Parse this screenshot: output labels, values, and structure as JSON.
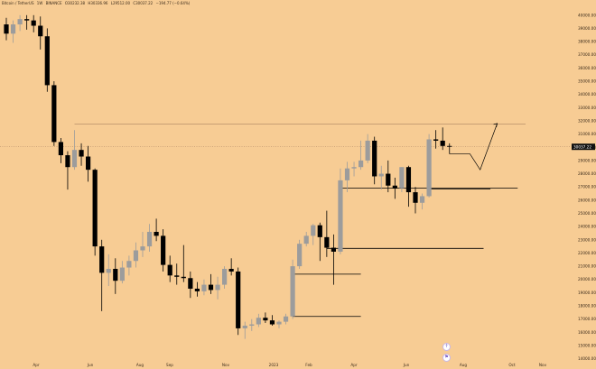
{
  "header": {
    "symbol": "Bitcoin / TetherUS",
    "interval": "1W",
    "exchange": "BINANCE",
    "open": "O30232.38",
    "high": "H30336.96",
    "low": "L29512.00",
    "close": "C30037.22",
    "change": "−194.77 (−0.64%)"
  },
  "price_label": "30037.22",
  "colors": {
    "background": "#f7cc94",
    "up_candle": "#9c9c9c",
    "down_candle": "#000000",
    "price_line": "#b8906a",
    "level_lines": "#000000",
    "projection": "#000000"
  },
  "icons": [
    "clock-icon",
    "arrow-icon",
    "flag-icon"
  ],
  "chart_data": {
    "type": "candlestick",
    "y_tick_labels": [
      "14000.00",
      "15000.00",
      "16000.00",
      "17000.00",
      "18000.00",
      "19000.00",
      "20000.00",
      "21000.00",
      "22000.00",
      "23000.00",
      "24000.00",
      "25000.00",
      "26000.00",
      "27000.00",
      "28000.00",
      "29000.00",
      "30000.00",
      "31000.00",
      "32000.00",
      "33000.00",
      "34000.00",
      "35000.00",
      "36000.00",
      "37000.00",
      "38000.00",
      "39000.00",
      "40000.00"
    ],
    "x_tick_labels": [
      "Apr",
      "Jun",
      "Aug",
      "Sep",
      "Nov",
      "2023",
      "Feb",
      "Apr",
      "Jun",
      "Aug",
      "Oct",
      "Nov"
    ],
    "ylim": [
      14000,
      40000
    ],
    "candles": [
      {
        "o": 39300,
        "h": 39800,
        "l": 38100,
        "c": 38600
      },
      {
        "o": 38600,
        "h": 39600,
        "l": 37900,
        "c": 39300
      },
      {
        "o": 39300,
        "h": 40000,
        "l": 38800,
        "c": 39700
      },
      {
        "o": 39700,
        "h": 40000,
        "l": 38900,
        "c": 39600
      },
      {
        "o": 39600,
        "h": 40000,
        "l": 38700,
        "c": 39200
      },
      {
        "o": 39200,
        "h": 39900,
        "l": 37400,
        "c": 38400
      },
      {
        "o": 38400,
        "h": 39000,
        "l": 34200,
        "c": 34700
      },
      {
        "o": 34700,
        "h": 35000,
        "l": 30100,
        "c": 30400
      },
      {
        "o": 30400,
        "h": 30700,
        "l": 28800,
        "c": 29400
      },
      {
        "o": 29400,
        "h": 29700,
        "l": 26800,
        "c": 28500
      },
      {
        "o": 28500,
        "h": 31300,
        "l": 28300,
        "c": 29800
      },
      {
        "o": 29800,
        "h": 30300,
        "l": 28600,
        "c": 29300
      },
      {
        "o": 29300,
        "h": 30100,
        "l": 27400,
        "c": 28300
      },
      {
        "o": 28300,
        "h": 28400,
        "l": 21800,
        "c": 22500
      },
      {
        "o": 22500,
        "h": 23000,
        "l": 17600,
        "c": 20500
      },
      {
        "o": 20500,
        "h": 21900,
        "l": 19500,
        "c": 20800
      },
      {
        "o": 20800,
        "h": 21600,
        "l": 18900,
        "c": 19900
      },
      {
        "o": 19900,
        "h": 21400,
        "l": 19700,
        "c": 20900
      },
      {
        "o": 20900,
        "h": 21800,
        "l": 20300,
        "c": 21400
      },
      {
        "o": 21400,
        "h": 22800,
        "l": 20900,
        "c": 22200
      },
      {
        "o": 22200,
        "h": 23600,
        "l": 21700,
        "c": 22500
      },
      {
        "o": 22500,
        "h": 24200,
        "l": 22100,
        "c": 23600
      },
      {
        "o": 23600,
        "h": 24600,
        "l": 22900,
        "c": 23300
      },
      {
        "o": 23300,
        "h": 23800,
        "l": 20600,
        "c": 21100
      },
      {
        "o": 21100,
        "h": 21800,
        "l": 19800,
        "c": 20300
      },
      {
        "o": 20300,
        "h": 21200,
        "l": 19600,
        "c": 20200
      },
      {
        "o": 20200,
        "h": 22600,
        "l": 19800,
        "c": 20100
      },
      {
        "o": 20100,
        "h": 20600,
        "l": 18600,
        "c": 19300
      },
      {
        "o": 19300,
        "h": 19800,
        "l": 18700,
        "c": 19100
      },
      {
        "o": 19100,
        "h": 20000,
        "l": 18800,
        "c": 19600
      },
      {
        "o": 19600,
        "h": 20400,
        "l": 18900,
        "c": 19200
      },
      {
        "o": 19200,
        "h": 20200,
        "l": 18500,
        "c": 19600
      },
      {
        "o": 19600,
        "h": 21000,
        "l": 19300,
        "c": 20800
      },
      {
        "o": 20800,
        "h": 21600,
        "l": 20300,
        "c": 20600
      },
      {
        "o": 20600,
        "h": 20900,
        "l": 15800,
        "c": 16300
      },
      {
        "o": 16300,
        "h": 16800,
        "l": 15500,
        "c": 16500
      },
      {
        "o": 16500,
        "h": 17000,
        "l": 16100,
        "c": 16600
      },
      {
        "o": 16600,
        "h": 17400,
        "l": 16400,
        "c": 17100
      },
      {
        "o": 17100,
        "h": 17500,
        "l": 16700,
        "c": 16900
      },
      {
        "o": 16900,
        "h": 17300,
        "l": 16500,
        "c": 16600
      },
      {
        "o": 16600,
        "h": 16900,
        "l": 16300,
        "c": 16800
      },
      {
        "o": 16800,
        "h": 17400,
        "l": 16600,
        "c": 17200
      },
      {
        "o": 17200,
        "h": 21500,
        "l": 17000,
        "c": 21000
      },
      {
        "o": 21000,
        "h": 23000,
        "l": 20800,
        "c": 22700
      },
      {
        "o": 22700,
        "h": 23600,
        "l": 22500,
        "c": 23300
      },
      {
        "o": 23300,
        "h": 24200,
        "l": 22600,
        "c": 24100
      },
      {
        "o": 24100,
        "h": 24300,
        "l": 21400,
        "c": 23200
      },
      {
        "o": 23200,
        "h": 25200,
        "l": 21700,
        "c": 22400
      },
      {
        "o": 22400,
        "h": 23400,
        "l": 19600,
        "c": 22100
      },
      {
        "o": 22100,
        "h": 28400,
        "l": 21900,
        "c": 27500
      },
      {
        "o": 27500,
        "h": 28900,
        "l": 26600,
        "c": 28400
      },
      {
        "o": 28400,
        "h": 28900,
        "l": 27800,
        "c": 28500
      },
      {
        "o": 28500,
        "h": 30500,
        "l": 28300,
        "c": 29000
      },
      {
        "o": 29000,
        "h": 31000,
        "l": 28800,
        "c": 30500
      },
      {
        "o": 30500,
        "h": 30800,
        "l": 27200,
        "c": 27800
      },
      {
        "o": 27800,
        "h": 28600,
        "l": 26800,
        "c": 28000
      },
      {
        "o": 28000,
        "h": 29000,
        "l": 26600,
        "c": 27100
      },
      {
        "o": 27100,
        "h": 27700,
        "l": 26100,
        "c": 26900
      },
      {
        "o": 26900,
        "h": 28500,
        "l": 26600,
        "c": 28500
      },
      {
        "o": 28500,
        "h": 28600,
        "l": 25500,
        "c": 26600
      },
      {
        "o": 26600,
        "h": 27000,
        "l": 25000,
        "c": 25800
      },
      {
        "o": 25800,
        "h": 26500,
        "l": 25300,
        "c": 26300
      },
      {
        "o": 26300,
        "h": 31000,
        "l": 26200,
        "c": 30600
      },
      {
        "o": 30600,
        "h": 31300,
        "l": 29900,
        "c": 30500
      },
      {
        "o": 30500,
        "h": 31500,
        "l": 29800,
        "c": 30100
      },
      {
        "o": 30100,
        "h": 30300,
        "l": 29500,
        "c": 30037.22
      }
    ],
    "horizontal_levels": [
      {
        "price": 31750,
        "from_index": 10,
        "to_index": 110
      },
      {
        "price": 26900,
        "from_index": 49,
        "to_index": 75
      },
      {
        "price": 26850,
        "from_index": 62,
        "to_index": 71
      },
      {
        "price": 22350,
        "from_index": 47,
        "to_index": 70
      },
      {
        "price": 20400,
        "from_index": 42,
        "to_index": 52
      },
      {
        "price": 17200,
        "from_index": 42,
        "to_index": 52
      }
    ],
    "current_price_line": 30037.22,
    "projection_path": [
      {
        "index": 65,
        "price": 29500
      },
      {
        "index": 68,
        "price": 29500
      },
      {
        "index": 69.5,
        "price": 28300
      },
      {
        "index": 72,
        "price": 31800
      }
    ]
  }
}
